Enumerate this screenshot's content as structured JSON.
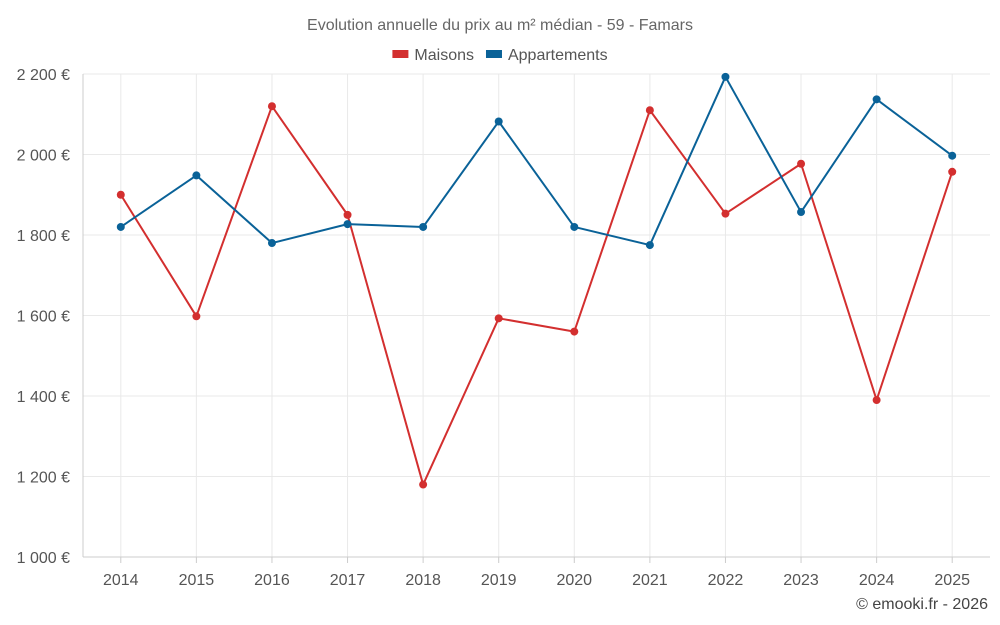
{
  "chart_data": {
    "type": "line",
    "title": "Evolution annuelle du prix au m² médian - 59 - Famars",
    "categories": [
      "2014",
      "2015",
      "2016",
      "2017",
      "2018",
      "2019",
      "2020",
      "2021",
      "2022",
      "2023",
      "2024",
      "2025"
    ],
    "series": [
      {
        "name": "Maisons",
        "color": "#d32f2f",
        "values": [
          1900,
          1598,
          2120,
          1850,
          1180,
          1593,
          1560,
          2110,
          1853,
          1977,
          1390,
          1957
        ]
      },
      {
        "name": "Appartements",
        "color": "#0a6298",
        "values": [
          1820,
          1948,
          1780,
          1827,
          1820,
          2082,
          1820,
          1775,
          2193,
          1857,
          2137,
          1997
        ]
      }
    ],
    "y_ticks": [
      1000,
      1200,
      1400,
      1600,
      1800,
      2000,
      2200
    ],
    "y_tick_labels": [
      "1 000 €",
      "1 200 €",
      "1 400 €",
      "1 600 €",
      "1 800 €",
      "2 000 €",
      "2 200 €"
    ],
    "ylim": [
      1000,
      2200
    ],
    "xlabel": "",
    "ylabel": "",
    "legend_position": "top-center",
    "grid": true
  },
  "credit": "© emooki.fr - 2026"
}
